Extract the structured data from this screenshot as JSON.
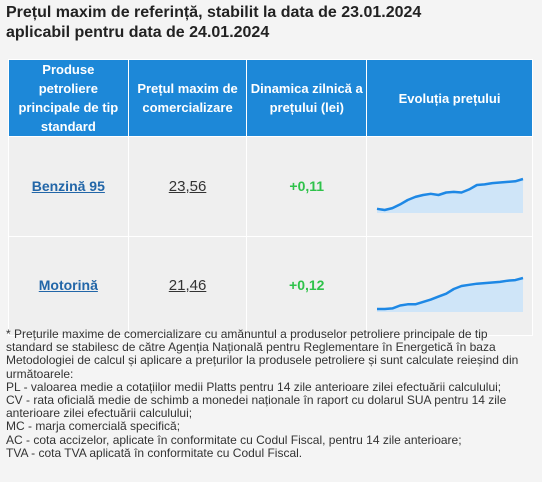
{
  "title": {
    "line1": "Prețul maxim de referință, stabilit la data de 23.01.2024",
    "line2": "aplicabil pentru data de 24.01.2024"
  },
  "table": {
    "headers": [
      "Produse petroliere principale de tip standard",
      "Prețul maxim de comercializare",
      "Dinamica zilnică a prețului (lei)",
      "Evoluția prețului"
    ],
    "rows": [
      {
        "product": "Benzină 95",
        "price": "23,56",
        "change": "+0,11"
      },
      {
        "product": "Motorină",
        "price": "21,46",
        "change": "+0,12"
      }
    ]
  },
  "sparklines": [
    {
      "values": [
        18.8,
        18.6,
        18.9,
        19.5,
        20.2,
        20.7,
        21.0,
        21.2,
        21.0,
        21.4,
        21.5,
        21.4,
        21.9,
        22.6,
        22.7,
        22.9,
        23.0,
        23.1,
        23.2,
        23.56
      ]
    },
    {
      "values": [
        16.2,
        16.2,
        16.3,
        16.8,
        17.0,
        17.0,
        17.4,
        17.8,
        18.3,
        18.8,
        19.6,
        20.1,
        20.3,
        20.5,
        20.6,
        20.7,
        20.8,
        21.0,
        21.1,
        21.46
      ]
    }
  ],
  "colors": {
    "header_bg": "#1d88d8",
    "spark_line": "#1e88e5",
    "spark_fill": "#cfe5f8",
    "positive": "#2ec24a",
    "link": "#2266a8"
  },
  "notes": [
    "* Prețurile maxime de comercializare cu amănuntul a produselor petroliere principale de tip standard se stabilesc de către Agenția Națională pentru Reglementare în Energetică în baza Metodologiei de calcul și aplicare a prețurilor la produsele petroliere și sunt calculate reieșind din următoarele:",
    "PL - valoarea medie a cotațiilor medii Platts pentru 14 zile anterioare zilei efectuării calculului;",
    "CV - rata oficială medie de schimb a monedei naționale în raport cu dolarul SUA pentru 14 zile anterioare zilei efectuării calculului;",
    "MC - marja comercială specifică;",
    "AC - cota accizelor, aplicate în conformitate cu Codul Fiscal, pentru 14 zile anterioare;",
    "TVA - cota TVA aplicată în conformitate cu Codul Fiscal."
  ]
}
